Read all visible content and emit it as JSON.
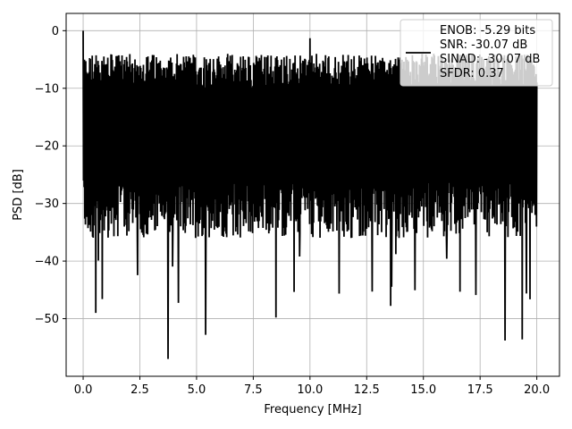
{
  "chart_data": {
    "type": "line",
    "title": "",
    "xlabel": "Frequency [MHz]",
    "ylabel": "PSD [dB]",
    "xlim": [
      -0.75,
      21.0
    ],
    "ylim": [
      -60.0,
      3.0
    ],
    "xticks": [
      0.0,
      2.5,
      5.0,
      7.5,
      10.0,
      12.5,
      15.0,
      17.5,
      20.0
    ],
    "xtick_labels": [
      "0.0",
      "2.5",
      "5.0",
      "7.5",
      "10.0",
      "12.5",
      "15.0",
      "17.5",
      "20.0"
    ],
    "yticks": [
      0,
      -10,
      -20,
      -30,
      -40,
      -50
    ],
    "ytick_labels": [
      "0",
      "−10",
      "−20",
      "−30",
      "−40",
      "−50"
    ],
    "grid": true,
    "legend_position": "top-right",
    "legend_lines": [
      "ENOB: -5.29 bits",
      "SNR: -30.07 dB",
      "SINAD: -30.07 dB",
      "SFDR: 0.37"
    ],
    "series": [
      {
        "color": "#000000",
        "x_range": [
          0.0,
          20.0
        ],
        "points": 400,
        "noise_floor_db": -17,
        "upper_envelope_db": -7,
        "lower_envelope_db": -33,
        "peaks": [
          {
            "x": 0.0,
            "y": 0.0
          },
          {
            "x": 3.75,
            "y": -57.0
          },
          {
            "x": 8.5,
            "y": -49.8
          },
          {
            "x": 10.0,
            "y": -1.3
          },
          {
            "x": 12.75,
            "y": -45.3
          },
          {
            "x": 18.6,
            "y": -53.8
          },
          {
            "x": 19.35,
            "y": -53.6
          },
          {
            "x": 5.4,
            "y": -52.8
          },
          {
            "x": 0.55,
            "y": -49.0
          }
        ]
      }
    ]
  }
}
